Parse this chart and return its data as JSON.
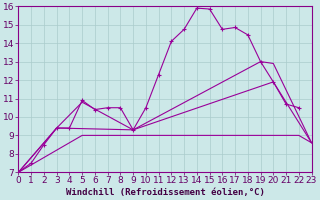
{
  "background_color": "#cce8e8",
  "grid_color": "#aacccc",
  "line_color": "#990099",
  "xlabel": "Windchill (Refroidissement éolien,°C)",
  "xlabel_fontsize": 6.5,
  "tick_fontsize": 6.5,
  "xlim": [
    0,
    23
  ],
  "ylim": [
    7,
    16
  ],
  "xticks": [
    0,
    1,
    2,
    3,
    4,
    5,
    6,
    7,
    8,
    9,
    10,
    11,
    12,
    13,
    14,
    15,
    16,
    17,
    18,
    19,
    20,
    21,
    22,
    23
  ],
  "yticks": [
    7,
    8,
    9,
    10,
    11,
    12,
    13,
    14,
    15,
    16
  ],
  "line1_x": [
    0,
    1,
    2,
    3,
    4,
    5,
    6,
    7,
    8,
    9,
    10,
    11,
    12,
    13,
    14,
    15,
    16,
    17,
    18,
    19,
    20,
    21,
    22
  ],
  "line1_y": [
    7.0,
    7.5,
    8.5,
    9.4,
    9.4,
    10.9,
    10.4,
    10.5,
    10.5,
    9.3,
    10.5,
    12.3,
    14.1,
    14.75,
    15.9,
    15.85,
    14.75,
    14.85,
    14.45,
    13.0,
    11.9,
    10.7,
    10.5
  ],
  "line2_x": [
    0,
    3,
    5,
    9,
    19,
    20,
    23
  ],
  "line2_y": [
    7.0,
    9.4,
    10.8,
    9.3,
    13.0,
    12.9,
    8.6
  ],
  "line3_x": [
    0,
    3,
    9,
    20,
    23
  ],
  "line3_y": [
    7.0,
    9.4,
    9.3,
    11.9,
    8.6
  ],
  "line4_x": [
    0,
    5,
    9,
    22,
    23
  ],
  "line4_y": [
    7.0,
    9.0,
    9.0,
    9.0,
    8.6
  ]
}
